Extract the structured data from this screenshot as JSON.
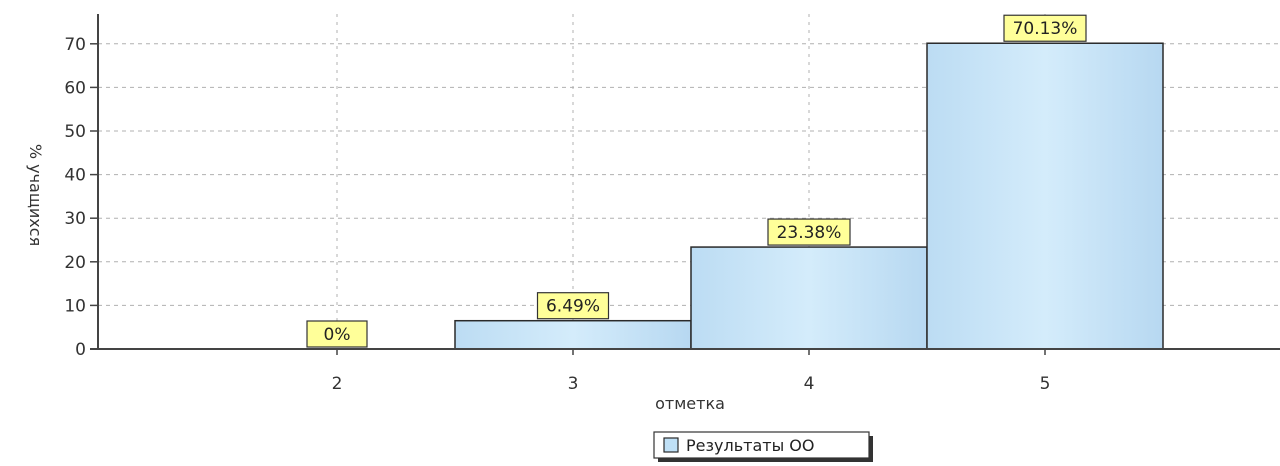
{
  "chart_data": {
    "type": "bar",
    "categories": [
      "2",
      "3",
      "4",
      "5"
    ],
    "values": [
      0,
      6.49,
      23.38,
      70.13
    ],
    "data_labels": [
      "0%",
      "6.49%",
      "23.38%",
      "70.13%"
    ],
    "series": [
      {
        "name": "Результаты ОО",
        "values": [
          0,
          6.49,
          23.38,
          70.13
        ]
      }
    ],
    "title": "",
    "xlabel": "отметка",
    "ylabel": "% учащихся",
    "ylim": [
      0,
      75
    ],
    "yticks": [
      0,
      10,
      20,
      30,
      40,
      50,
      60,
      70
    ],
    "grid": true,
    "legend_position": "bottom",
    "colors": {
      "bar_fill": "#bfe0f6",
      "bar_stroke": "#2a2a2a",
      "label_fill": "#ffff99",
      "grid": "#b0b0b0",
      "axis": "#444444"
    }
  }
}
